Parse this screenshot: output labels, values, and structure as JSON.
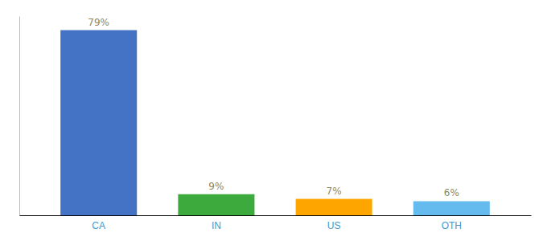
{
  "chart_data": {
    "type": "bar",
    "categories": [
      "CA",
      "IN",
      "US",
      "OTH"
    ],
    "values": [
      79,
      9,
      7,
      6
    ],
    "value_labels": [
      "79%",
      "9%",
      "7%",
      "6%"
    ],
    "colors": [
      "#4472C4",
      "#3DAA3D",
      "#FFA500",
      "#66BBEE"
    ],
    "ylim": [
      0,
      85
    ],
    "data_labels": true,
    "grid": false,
    "tick_labels": "x"
  }
}
